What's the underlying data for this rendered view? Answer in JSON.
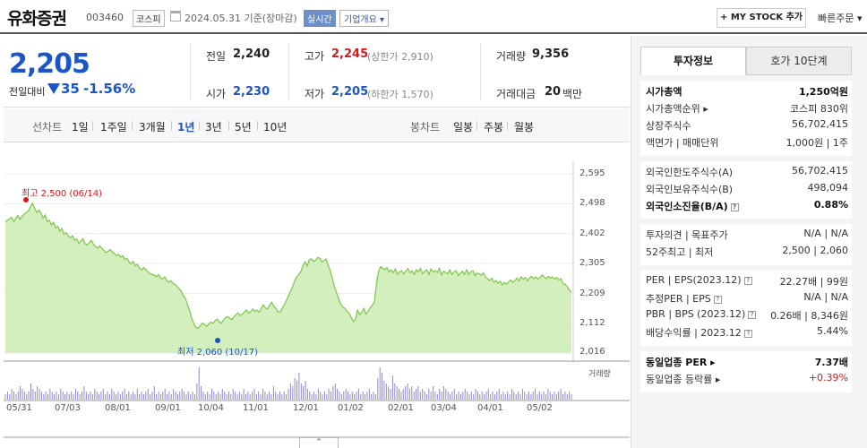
{
  "header": {
    "stock_name": "유화증권",
    "stock_code": "003460",
    "market": "코스피",
    "date_text": "2024.05.31 기준(장마감)",
    "realtime_label": "실시간",
    "company_dropdown": "기업개요 ▾",
    "mystock_label": "+ MY STOCK 추가",
    "quick_order": "빠른주문 ▾"
  },
  "summary": {
    "current_price": "2,205",
    "change_label": "전일대비",
    "change_amount": "35",
    "change_pct": "-1.56%",
    "prev_close_label": "전일",
    "prev_close": "2,240",
    "high_label": "고가",
    "high": "2,245",
    "upper_limit": "(상한가 2,910)",
    "volume_label": "거래량",
    "volume": "9,356",
    "open_label": "시가",
    "open": "2,230",
    "low_label": "저가",
    "low": "2,205",
    "lower_limit": "(하한가 1,570)",
    "amount_label": "거래대금",
    "amount": "20",
    "amount_unit": "백만"
  },
  "period_bar": {
    "line_chart_label": "선차트",
    "line_periods": [
      "1일",
      "1주일",
      "3개월",
      "1년",
      "3년",
      "5년",
      "10년"
    ],
    "selected_period": "1년",
    "candle_chart_label": "봉차트",
    "candle_periods": [
      "일봉",
      "주봉",
      "월봉"
    ]
  },
  "chart_data": {
    "type": "area",
    "title": "",
    "y_ticks": [
      "2,595",
      "2,498",
      "2,402",
      "2,305",
      "2,209",
      "2,112",
      "2,016"
    ],
    "ylim": [
      2016,
      2595
    ],
    "x_ticks": [
      "05/31",
      "07/03",
      "08/01",
      "09/01",
      "10/04",
      "11/01",
      "12/01",
      "01/02",
      "02/01",
      "03/04",
      "04/01",
      "05/02"
    ],
    "high_annotation": "최고 2,500 (06/14)",
    "low_annotation": "최저 2,060 (10/17)",
    "volume_legend": "거래량",
    "line_color": "#7dc54a",
    "fill_color": "#d4efbe",
    "price_series": [
      2440,
      2445,
      2450,
      2455,
      2440,
      2452,
      2460,
      2448,
      2458,
      2465,
      2470,
      2475,
      2490,
      2500,
      2482,
      2470,
      2478,
      2468,
      2452,
      2462,
      2440,
      2445,
      2430,
      2438,
      2420,
      2425,
      2410,
      2418,
      2400,
      2405,
      2395,
      2388,
      2395,
      2380,
      2385,
      2370,
      2378,
      2385,
      2370,
      2365,
      2372,
      2380,
      2368,
      2360,
      2355,
      2362,
      2355,
      2348,
      2340,
      2345,
      2350,
      2342,
      2338,
      2330,
      2335,
      2326,
      2330,
      2318,
      2322,
      2310,
      2305,
      2312,
      2298,
      2302,
      2290,
      2285,
      2292,
      2286,
      2278,
      2272,
      2270,
      2268,
      2262,
      2270,
      2258,
      2255,
      2262,
      2250,
      2245,
      2250,
      2240,
      2238,
      2230,
      2222,
      2215,
      2200,
      2190,
      2170,
      2150,
      2125,
      2110,
      2098,
      2096,
      2105,
      2112,
      2108,
      2102,
      2110,
      2116,
      2112,
      2120,
      2126,
      2118,
      2112,
      2122,
      2130,
      2134,
      2128,
      2124,
      2132,
      2140,
      2146,
      2136,
      2142,
      2148,
      2155,
      2145,
      2150,
      2158,
      2150,
      2155,
      2148,
      2160,
      2172,
      2162,
      2158,
      2170,
      2180,
      2168,
      2160,
      2150,
      2148,
      2160,
      2172,
      2185,
      2200,
      2215,
      2230,
      2250,
      2262,
      2270,
      2280,
      2300,
      2310,
      2298,
      2318,
      2320,
      2312,
      2316,
      2325,
      2322,
      2310,
      2315,
      2320,
      2300,
      2280,
      2255,
      2230,
      2210,
      2190,
      2175,
      2165,
      2160,
      2150,
      2145,
      2130,
      2118,
      2125,
      2155,
      2140,
      2148,
      2160,
      2142,
      2150,
      2162,
      2170,
      2180,
      2240,
      2280,
      2295,
      2290,
      2285,
      2292,
      2278,
      2285,
      2275,
      2288,
      2270,
      2278,
      2282,
      2272,
      2280,
      2290,
      2275,
      2282,
      2270,
      2285,
      2278,
      2290,
      2272,
      2280,
      2285,
      2270,
      2288,
      2278,
      2282,
      2275,
      2290,
      2268,
      2280,
      2276,
      2272,
      2285,
      2270,
      2278,
      2282,
      2266,
      2274,
      2280,
      2270,
      2285,
      2270,
      2278,
      2282,
      2266,
      2274,
      2272,
      2268,
      2275,
      2262,
      2256,
      2250,
      2258,
      2245,
      2250,
      2242,
      2248,
      2236,
      2244,
      2238,
      2246,
      2252,
      2244,
      2250,
      2258,
      2250,
      2262,
      2255,
      2260,
      2250,
      2258,
      2264,
      2256,
      2262,
      2255,
      2260,
      2268,
      2262,
      2256,
      2264,
      2258,
      2262,
      2255,
      2260,
      2252,
      2256,
      2240,
      2238,
      2230,
      2220,
      2212
    ],
    "volume_series": [
      2,
      3,
      2,
      4,
      3,
      2,
      3,
      5,
      4,
      3,
      2,
      3,
      6,
      4,
      3,
      5,
      4,
      3,
      2,
      3,
      2,
      4,
      3,
      2,
      3,
      2,
      4,
      3,
      2,
      3,
      2,
      3,
      2,
      4,
      3,
      2,
      3,
      5,
      3,
      2,
      3,
      2,
      4,
      3,
      2,
      3,
      4,
      2,
      3,
      2,
      4,
      3,
      2,
      3,
      2,
      3,
      4,
      2,
      3,
      2,
      3,
      2,
      4,
      2,
      3,
      2,
      3,
      4,
      2,
      3,
      5,
      2,
      3,
      2,
      3,
      4,
      2,
      3,
      2,
      4,
      3,
      2,
      3,
      4,
      3,
      2,
      3,
      2,
      3,
      2,
      6,
      12,
      5,
      3,
      2,
      3,
      2,
      4,
      3,
      2,
      3,
      2,
      4,
      3,
      2,
      3,
      2,
      4,
      3,
      2,
      3,
      2,
      4,
      2,
      3,
      2,
      3,
      4,
      2,
      3,
      2,
      4,
      3,
      2,
      3,
      2,
      5,
      3,
      2,
      3,
      2,
      3,
      2,
      4,
      6,
      5,
      8,
      7,
      10,
      6,
      5,
      7,
      4,
      3,
      2,
      3,
      2,
      4,
      3,
      2,
      3,
      2,
      4,
      3,
      5,
      6,
      4,
      3,
      2,
      3,
      4,
      3,
      2,
      3,
      2,
      3,
      4,
      2,
      3,
      2,
      3,
      4,
      2,
      3,
      2,
      8,
      12,
      10,
      7,
      6,
      5,
      4,
      9,
      6,
      5,
      4,
      3,
      4,
      5,
      6,
      4,
      5,
      3,
      4,
      5,
      3,
      4,
      3,
      2,
      4,
      3,
      5,
      3,
      2,
      4,
      3,
      5,
      4,
      3,
      2,
      3,
      4,
      2,
      3,
      2,
      3,
      4,
      3,
      2,
      3,
      2,
      4,
      3,
      2,
      3,
      2,
      3,
      4,
      2,
      3,
      2,
      3,
      4,
      2,
      3,
      2,
      3,
      2,
      4,
      3,
      2,
      3,
      2,
      4,
      3,
      2,
      3,
      2,
      3,
      4,
      2,
      3,
      2,
      3,
      2,
      4,
      3,
      2,
      3,
      2,
      3,
      4,
      2,
      3,
      2,
      3,
      2
    ]
  },
  "right_panel": {
    "tab_active": "투자정보",
    "tab_inactive": "호가 10단계",
    "section1": [
      {
        "k": "시가총액",
        "v": "1,250억원",
        "bold": true
      },
      {
        "k": "시가총액순위 ▸",
        "v": "코스피 830위",
        "bold": false
      },
      {
        "k": "상장주식수",
        "v": "56,702,415",
        "bold": false
      },
      {
        "k": "액면가 | 매매단위",
        "v": "1,000원 | 1주",
        "bold": false
      }
    ],
    "section2": [
      {
        "k": "외국인한도주식수(A)",
        "v": "56,702,415",
        "bold": false
      },
      {
        "k": "외국인보유주식수(B)",
        "v": "498,094",
        "bold": false
      },
      {
        "k": "외국인소진율(B/A)",
        "v": "0.88%",
        "bold": true
      }
    ],
    "section3": [
      {
        "k": "투자의견 | 목표주가",
        "v": "N/A | N/A",
        "bold": false
      },
      {
        "k": "52주최고 | 최저",
        "v": "2,500 | 2,060",
        "bold": false
      }
    ],
    "section4": [
      {
        "k": "PER | EPS(2023.12)",
        "v": "22.27배 | 99원",
        "bold": false
      },
      {
        "k": "추정PER | EPS",
        "v": "N/A | N/A",
        "bold": false
      },
      {
        "k": "PBR | BPS (2023.12)",
        "v": "0.26배 | 8,346원",
        "bold": false
      },
      {
        "k": "배당수익률 | 2023.12",
        "v": "5.44%",
        "bold": false
      }
    ],
    "section5": [
      {
        "k": "동일업종 PER ▸",
        "v": "7.37배",
        "bold": true
      },
      {
        "k": "동일업종 등락률 ▸",
        "v": "+0.39%",
        "bold": false
      }
    ]
  }
}
